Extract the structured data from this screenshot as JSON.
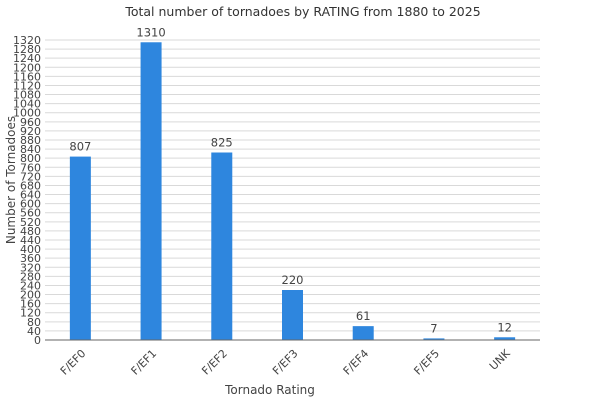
{
  "chart_data": {
    "type": "bar",
    "title": "Total number of tornadoes by RATING from 1880 to 2025",
    "xlabel": "Tornado Rating",
    "ylabel": "Number of Tornadoes",
    "categories": [
      "F/EF0",
      "F/EF1",
      "F/EF2",
      "F/EF3",
      "F/EF4",
      "F/EF5",
      "UNK"
    ],
    "values": [
      807,
      1310,
      825,
      220,
      61,
      7,
      12
    ],
    "ylim": [
      0,
      1320
    ],
    "ytick_step": 40,
    "grid": true,
    "legend": "none",
    "bar_color": "#2e86de"
  }
}
